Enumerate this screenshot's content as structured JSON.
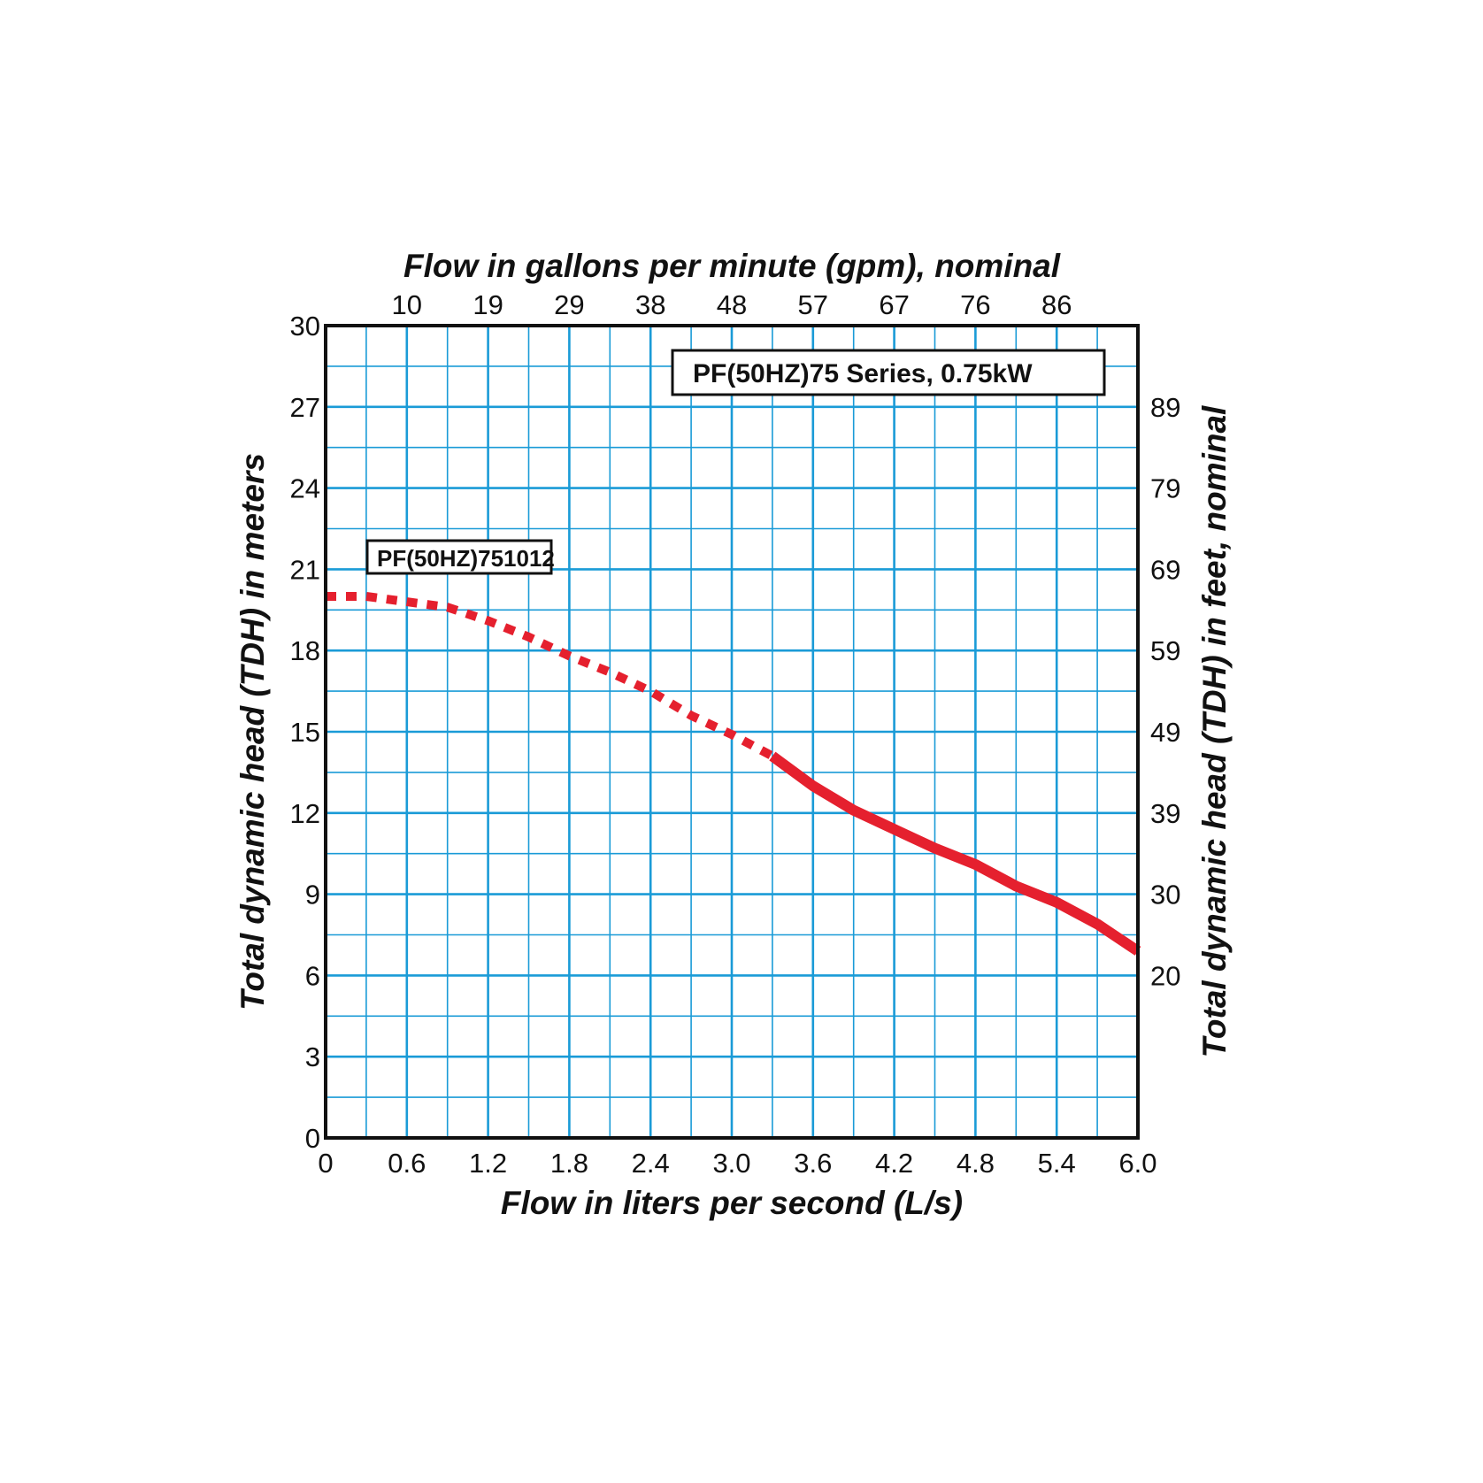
{
  "chart_data": {
    "type": "line",
    "title": "PF(50HZ)75 Series, 0.75kW",
    "xlabel": "Flow in liters per second (L/s)",
    "ylabel": "Total dynamic head (TDH) in meters",
    "x2label": "Flow in gallons per minute (gpm), nominal",
    "y2label": "Total dynamic head (TDH) in feet, nominal",
    "xlim": [
      0,
      6.0
    ],
    "ylim": [
      0,
      30
    ],
    "x_ticks": [
      "0",
      "0.6",
      "1.2",
      "1.8",
      "2.4",
      "3.0",
      "3.6",
      "4.2",
      "4.8",
      "5.4",
      "6.0"
    ],
    "y_ticks": [
      "0",
      "3",
      "6",
      "9",
      "12",
      "15",
      "18",
      "21",
      "24",
      "27",
      "30"
    ],
    "x2_ticks": [
      "10",
      "19",
      "29",
      "38",
      "48",
      "57",
      "67",
      "76",
      "86"
    ],
    "y2_ticks": [
      "89",
      "79",
      "69",
      "59",
      "49",
      "39",
      "30",
      "20"
    ],
    "grid": true,
    "series": [
      {
        "name": "PF(50HZ)751012",
        "color": "#e5202e",
        "dashed_segment": [
          [
            0,
            20.0
          ],
          [
            0.3,
            20.0
          ],
          [
            0.6,
            19.8
          ],
          [
            0.9,
            19.6
          ],
          [
            1.2,
            19.1
          ],
          [
            1.5,
            18.5
          ],
          [
            1.8,
            17.8
          ],
          [
            2.1,
            17.2
          ],
          [
            2.4,
            16.5
          ],
          [
            2.7,
            15.6
          ],
          [
            3.0,
            14.9
          ],
          [
            3.3,
            14.1
          ]
        ],
        "solid_segment": [
          [
            3.3,
            14.1
          ],
          [
            3.6,
            13.0
          ],
          [
            3.9,
            12.1
          ],
          [
            4.2,
            11.4
          ],
          [
            4.5,
            10.7
          ],
          [
            4.8,
            10.1
          ],
          [
            5.1,
            9.3
          ],
          [
            5.4,
            8.7
          ],
          [
            5.7,
            7.9
          ],
          [
            6.0,
            6.9
          ]
        ]
      }
    ],
    "colors": {
      "grid": "#1a9bd7",
      "frame": "#111111",
      "curve": "#e5202e"
    }
  }
}
